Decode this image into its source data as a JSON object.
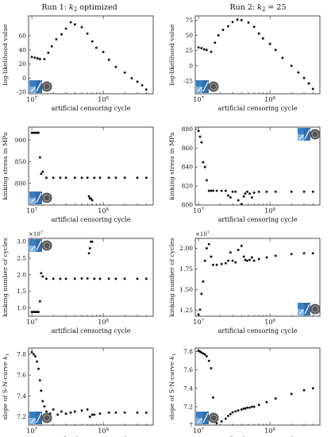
{
  "columns": [
    {
      "title_prefix": "Run 1: ",
      "title_math": "k",
      "title_sub": "2",
      "title_suffix": " optimized"
    },
    {
      "title_prefix": "Run 2: ",
      "title_math": "k",
      "title_sub": "2",
      "title_suffix": " = 25"
    }
  ],
  "chart_data": [
    {
      "type": "scatter",
      "panel": "run1-loglik",
      "xscale": "log",
      "xlabel": "artificial censoring cycle",
      "ylabel": "log-likelihood value",
      "xlim": [
        9000000,
        500000000
      ],
      "ylim": [
        -22,
        88
      ],
      "yticks": [
        -20,
        0,
        20,
        40,
        60
      ],
      "xticks": [
        10000000,
        100000000
      ],
      "xticklabels": [
        "10^7",
        "10^8"
      ],
      "exponent": "",
      "logo_corner": "bottom-left",
      "x": [
        10000000,
        11000000,
        12000000,
        13000000,
        15000000,
        17000000,
        19000000,
        22000000,
        26000000,
        30000000,
        35000000,
        40000000,
        50000000,
        60000000,
        70000000,
        80000000,
        100000000,
        120000000,
        150000000,
        200000000,
        250000000,
        300000000,
        350000000,
        400000000
      ],
      "y": [
        30,
        29,
        28,
        27,
        27,
        36,
        45,
        55,
        62,
        70,
        79,
        76,
        72,
        63,
        52,
        43,
        37,
        26,
        16,
        8,
        0,
        -5,
        -10,
        -16
      ]
    },
    {
      "type": "scatter",
      "panel": "run2-loglik",
      "xscale": "log",
      "xlabel": "artificial censoring cycle",
      "ylabel": "log-likelihood value",
      "xlim": [
        9000000,
        500000000
      ],
      "ylim": [
        -46,
        82
      ],
      "yticks": [
        -25,
        0,
        25,
        50,
        75
      ],
      "xticks": [
        10000000,
        100000000
      ],
      "xticklabels": [
        "10^7",
        "10^8"
      ],
      "exponent": "",
      "logo_corner": "bottom-left",
      "x": [
        10000000,
        11000000,
        12000000,
        13000000,
        15000000,
        17000000,
        19000000,
        22000000,
        26000000,
        30000000,
        35000000,
        40000000,
        50000000,
        60000000,
        70000000,
        80000000,
        100000000,
        120000000,
        150000000,
        200000000,
        250000000,
        300000000,
        350000000,
        400000000
      ],
      "y": [
        30,
        29,
        27,
        26,
        23,
        38,
        50,
        59,
        65,
        72,
        76,
        75,
        71,
        64,
        53,
        45,
        36,
        26,
        13,
        0,
        -11,
        -20,
        -29,
        -38
      ]
    },
    {
      "type": "scatter",
      "panel": "run1-stress",
      "xscale": "log",
      "xlabel": "artificial censoring cycle",
      "ylabel": "kinking stress in MPa",
      "xlim": [
        9000000,
        500000000
      ],
      "ylim": [
        750,
        930
      ],
      "yticks": [
        800,
        850,
        900
      ],
      "xticks": [
        10000000,
        100000000
      ],
      "xticklabels": [
        "10^7",
        "10^8"
      ],
      "exponent": "",
      "logo_corner": "bottom-left",
      "x": [
        10000000,
        10600000,
        11200000,
        11800000,
        12400000,
        13000000,
        13500000,
        14200000,
        16000000,
        20000000,
        25000000,
        30000000,
        40000000,
        50000000,
        60000000,
        63000000,
        65000000,
        67000000,
        70000000,
        75000000,
        90000000,
        120000000,
        150000000,
        200000000,
        300000000,
        400000000
      ],
      "y": [
        917,
        917,
        917,
        917,
        917,
        860,
        822,
        827,
        813,
        813,
        813,
        813,
        813,
        813,
        813,
        770,
        765,
        765,
        761,
        813,
        813,
        813,
        813,
        813,
        813,
        813
      ]
    },
    {
      "type": "scatter",
      "panel": "run2-stress",
      "xscale": "log",
      "xlabel": "artificial censoring cycle",
      "ylabel": "kinking stress in MPa",
      "xlim": [
        9000000,
        500000000
      ],
      "ylim": [
        800,
        882
      ],
      "yticks": [
        800,
        820,
        840,
        860,
        880
      ],
      "xticks": [
        10000000,
        100000000
      ],
      "xticklabels": [
        "10^7",
        "10^8"
      ],
      "exponent": "",
      "logo_corner": "top-right",
      "x": [
        10000000,
        10500000,
        11000000,
        11600000,
        12300000,
        13000000,
        14000000,
        15000000,
        16000000,
        18000000,
        21000000,
        24000000,
        26000000,
        28000000,
        30000000,
        33000000,
        36000000,
        40000000,
        43000000,
        45000000,
        48000000,
        52000000,
        56000000,
        60000000,
        70000000,
        90000000,
        120000000,
        200000000,
        300000000,
        400000000
      ],
      "y": [
        878,
        872,
        866,
        845,
        840,
        826,
        815,
        815,
        815,
        815,
        815,
        815,
        810,
        808,
        814,
        814,
        805,
        801,
        809,
        812,
        814,
        812,
        808,
        813,
        814,
        814,
        814,
        814,
        814,
        814
      ]
    },
    {
      "type": "scatter",
      "panel": "run1-cycles",
      "xscale": "log",
      "xlabel": "artificial censoring cycle",
      "ylabel": "kinking number of cycles",
      "xlim": [
        9000000,
        500000000
      ],
      "ylim": [
        7500000,
        31000000
      ],
      "yticks": [
        10000000,
        15000000,
        20000000,
        25000000,
        30000000
      ],
      "yticklabels": [
        "1.0",
        "1.5",
        "2.0",
        "2.5",
        "3.0"
      ],
      "xticks": [
        10000000,
        100000000
      ],
      "xticklabels": [
        "10^7",
        "10^8"
      ],
      "exponent": "×10^7",
      "logo_corner": "top-left",
      "x": [
        10000000,
        10600000,
        11200000,
        11800000,
        12400000,
        13000000,
        13500000,
        14200000,
        16000000,
        20000000,
        25000000,
        30000000,
        40000000,
        50000000,
        60000000,
        63000000,
        65000000,
        67000000,
        70000000,
        75000000,
        90000000,
        120000000,
        150000000,
        200000000,
        300000000,
        400000000
      ],
      "y": [
        8800000,
        8800000,
        8800000,
        8800000,
        8800000,
        12000000,
        20500000,
        19500000,
        18800000,
        18800000,
        18800000,
        18800000,
        18800000,
        18900000,
        18900000,
        26500000,
        28000000,
        30000000,
        30000000,
        18800000,
        18800000,
        18800000,
        18800000,
        18800000,
        18800000,
        18800000
      ]
    },
    {
      "type": "scatter",
      "panel": "run2-cycles",
      "xscale": "log",
      "xlabel": "artificial censoring cycle",
      "ylabel": "kinking number of cycles",
      "xlim": [
        9000000,
        500000000
      ],
      "ylim": [
        11800000,
        21200000
      ],
      "yticks": [
        12500000,
        15000000,
        17500000,
        20000000
      ],
      "yticklabels": [
        "1.25",
        "1.50",
        "1.75",
        "2.00"
      ],
      "xticks": [
        10000000,
        100000000
      ],
      "xticklabels": [
        "10^7",
        "10^8"
      ],
      "exponent": "×10^7",
      "logo_corner": "bottom-right",
      "x": [
        10000000,
        10500000,
        11000000,
        11600000,
        12300000,
        13000000,
        14000000,
        15000000,
        16000000,
        18000000,
        21000000,
        24000000,
        26000000,
        28000000,
        30000000,
        33000000,
        36000000,
        40000000,
        43000000,
        45000000,
        48000000,
        52000000,
        56000000,
        60000000,
        70000000,
        90000000,
        120000000,
        200000000,
        300000000,
        400000000
      ],
      "y": [
        12000000,
        12600000,
        14500000,
        16000000,
        18500000,
        20000000,
        20500000,
        19000000,
        18000000,
        18000000,
        18100000,
        18200000,
        18500000,
        19500000,
        18500000,
        18300000,
        19800000,
        20300000,
        19000000,
        18600000,
        18500000,
        18600000,
        18900000,
        18500000,
        18700000,
        18900000,
        19100000,
        19300000,
        19400000,
        19400000
      ]
    },
    {
      "type": "scatter",
      "panel": "run1-slope",
      "xscale": "log",
      "xlabel": "artificial censoring cycle",
      "ylabel_prefix": "slope of S-N-curve ",
      "ylabel_math": "k",
      "ylabel_sub": "1",
      "xlim": [
        9000000,
        500000000
      ],
      "ylim": [
        7.12,
        7.86
      ],
      "yticks": [
        7.2,
        7.4,
        7.6,
        7.8
      ],
      "xticks": [
        10000000,
        100000000
      ],
      "xticklabels": [
        "10^7",
        "10^8"
      ],
      "exponent": "",
      "logo_corner": "bottom-left",
      "x": [
        10000000,
        10600000,
        11200000,
        11800000,
        12400000,
        13000000,
        13500000,
        14200000,
        15000000,
        16000000,
        18000000,
        20000000,
        23000000,
        26000000,
        30000000,
        35000000,
        40000000,
        50000000,
        60000000,
        65000000,
        70000000,
        75000000,
        90000000,
        120000000,
        150000000,
        200000000,
        300000000,
        400000000
      ],
      "y": [
        7.82,
        7.8,
        7.78,
        7.73,
        7.66,
        7.55,
        7.45,
        7.35,
        7.3,
        7.25,
        7.23,
        7.27,
        7.22,
        7.25,
        7.23,
        7.24,
        7.25,
        7.26,
        7.27,
        7.2,
        7.22,
        7.22,
        7.23,
        7.24,
        7.24,
        7.24,
        7.24,
        7.24
      ]
    },
    {
      "type": "scatter",
      "panel": "run2-slope",
      "xscale": "log",
      "xlabel": "artificial censoring cycle",
      "ylabel_prefix": "slope of S-N-curve ",
      "ylabel_math": "k",
      "ylabel_sub": "1",
      "xlim": [
        9000000,
        500000000
      ],
      "ylim": [
        7.0,
        7.84
      ],
      "yticks": [
        7.0,
        7.2,
        7.4,
        7.6,
        7.8
      ],
      "xticks": [
        10000000,
        100000000
      ],
      "xticklabels": [
        "10^7",
        "10^8"
      ],
      "exponent": "",
      "logo_corner": "bottom-left",
      "x": [
        10000000,
        10500000,
        11000000,
        11600000,
        12300000,
        13000000,
        14000000,
        15000000,
        16000000,
        18000000,
        21000000,
        24000000,
        26000000,
        28000000,
        30000000,
        33000000,
        36000000,
        40000000,
        43000000,
        45000000,
        48000000,
        52000000,
        56000000,
        60000000,
        70000000,
        90000000,
        120000000,
        200000000,
        300000000,
        400000000
      ],
      "y": [
        7.81,
        7.8,
        7.79,
        7.78,
        7.77,
        7.75,
        7.7,
        7.62,
        7.3,
        7.02,
        7.04,
        7.07,
        7.1,
        7.12,
        7.14,
        7.15,
        7.16,
        7.17,
        7.18,
        7.18,
        7.19,
        7.19,
        7.2,
        7.2,
        7.22,
        7.25,
        7.29,
        7.34,
        7.38,
        7.4
      ]
    }
  ]
}
